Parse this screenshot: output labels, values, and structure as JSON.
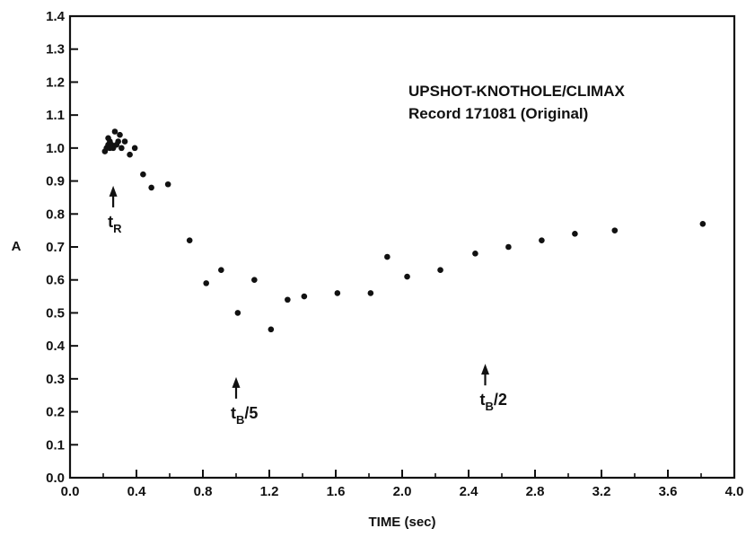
{
  "chart_data": {
    "type": "scatter",
    "title": "",
    "xlabel": "TIME (sec)",
    "ylabel": "A",
    "xlim": [
      0.0,
      4.0
    ],
    "ylim": [
      0.0,
      1.4
    ],
    "grid": false,
    "xticks": [
      0.0,
      0.4,
      0.8,
      1.2,
      1.6,
      2.0,
      2.4,
      2.8,
      3.2,
      3.6,
      4.0
    ],
    "xtick_labels": [
      "0.0",
      "0.4",
      "0.8",
      "1.2",
      "1.6",
      "2.0",
      "2.4",
      "2.8",
      "3.2",
      "3.6",
      "4.0"
    ],
    "yticks": [
      0.0,
      0.1,
      0.2,
      0.3,
      0.4,
      0.5,
      0.6,
      0.7,
      0.8,
      0.9,
      1.0,
      1.1,
      1.2,
      1.3,
      1.4
    ],
    "ytick_labels": [
      "0.0",
      "0.1",
      "0.2",
      "0.3",
      "0.4",
      "0.5",
      "0.6",
      "0.7",
      "0.8",
      "0.9",
      "1.0",
      "1.1",
      "1.2",
      "1.3",
      "1.4"
    ],
    "minor_x_step": 0.2,
    "text_box": [
      "UPSHOT-KNOTHOLE/CLIMAX",
      "Record 171081 (Original)"
    ],
    "annotations": [
      {
        "arrow_x": 0.26,
        "arrow_y": 0.88,
        "arrow_from_y": 0.82,
        "label_main": "t",
        "label_sub": "R",
        "label_suffix": ""
      },
      {
        "arrow_x": 1.0,
        "arrow_y": 0.3,
        "arrow_from_y": 0.24,
        "label_main": "t",
        "label_sub": "B",
        "label_suffix": "/5"
      },
      {
        "arrow_x": 2.5,
        "arrow_y": 0.34,
        "arrow_from_y": 0.28,
        "label_main": "t",
        "label_sub": "B",
        "label_suffix": "/2"
      }
    ],
    "series": [
      {
        "points": [
          [
            0.21,
            0.99
          ],
          [
            0.22,
            1.0
          ],
          [
            0.23,
            1.01
          ],
          [
            0.23,
            1.03
          ],
          [
            0.24,
            1.0
          ],
          [
            0.24,
            1.02
          ],
          [
            0.25,
            1.01
          ],
          [
            0.26,
            1.0
          ],
          [
            0.27,
            1.05
          ],
          [
            0.28,
            1.01
          ],
          [
            0.29,
            1.02
          ],
          [
            0.3,
            1.04
          ],
          [
            0.31,
            1.0
          ],
          [
            0.33,
            1.02
          ],
          [
            0.36,
            0.98
          ],
          [
            0.39,
            1.0
          ],
          [
            0.44,
            0.92
          ],
          [
            0.49,
            0.88
          ],
          [
            0.59,
            0.89
          ],
          [
            0.72,
            0.72
          ],
          [
            0.82,
            0.59
          ],
          [
            0.91,
            0.63
          ],
          [
            1.01,
            0.5
          ],
          [
            1.11,
            0.6
          ],
          [
            1.21,
            0.45
          ],
          [
            1.31,
            0.54
          ],
          [
            1.41,
            0.55
          ],
          [
            1.61,
            0.56
          ],
          [
            1.81,
            0.56
          ],
          [
            1.91,
            0.67
          ],
          [
            2.03,
            0.61
          ],
          [
            2.23,
            0.63
          ],
          [
            2.44,
            0.68
          ],
          [
            2.64,
            0.7
          ],
          [
            2.84,
            0.72
          ],
          [
            3.04,
            0.74
          ],
          [
            3.28,
            0.75
          ],
          [
            3.81,
            0.77
          ]
        ]
      }
    ]
  }
}
